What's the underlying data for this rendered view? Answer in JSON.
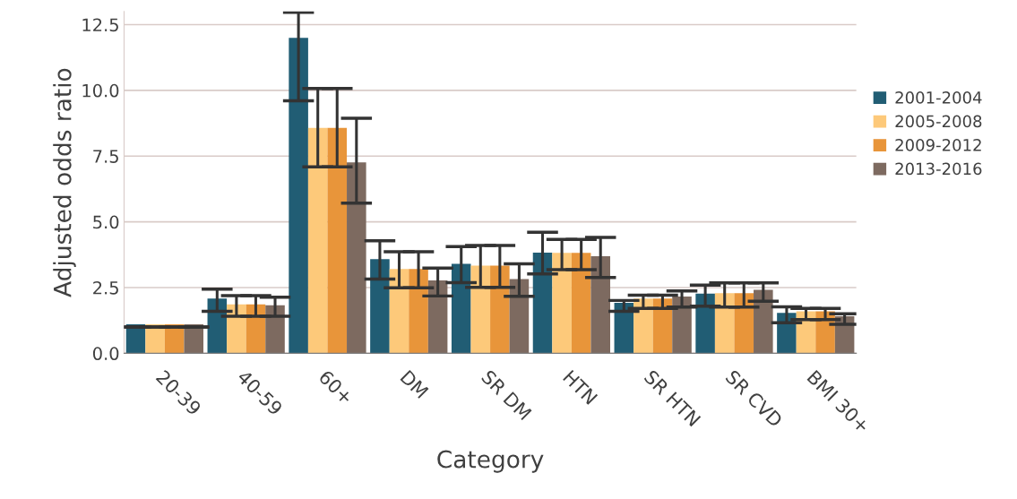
{
  "chart_data": {
    "type": "bar",
    "xlabel": "Category",
    "ylabel": "Adjusted odds ratio",
    "categories": [
      "20-39",
      "40-59",
      "60+",
      "DM",
      "SR DM",
      "HTN",
      "SR HTN",
      "SR CVD",
      "BMI 30+"
    ],
    "series": [
      {
        "name": "2001-2004",
        "color": "#215d74",
        "values": [
          1.1,
          2.08,
          12.0,
          3.58,
          3.4,
          3.83,
          1.92,
          2.27,
          1.54
        ],
        "errors": [
          [
            1.0,
            1.0
          ],
          [
            1.6,
            2.44
          ],
          [
            9.6,
            12.97
          ],
          [
            2.82,
            4.28
          ],
          [
            2.69,
            4.06
          ],
          [
            3.02,
            4.6
          ],
          [
            1.6,
            2.01
          ],
          [
            1.79,
            2.59
          ],
          [
            1.16,
            1.77
          ]
        ]
      },
      {
        "name": "2005-2008",
        "color": "#fdc97a",
        "values": [
          1.1,
          1.86,
          8.57,
          3.21,
          3.33,
          3.82,
          2.08,
          2.29,
          1.6
        ],
        "errors": [
          [
            1.0,
            1.0
          ],
          [
            1.41,
            2.19
          ],
          [
            7.09,
            10.07
          ],
          [
            2.49,
            3.86
          ],
          [
            2.51,
            4.1
          ],
          [
            3.18,
            4.33
          ],
          [
            1.71,
            2.21
          ],
          [
            1.76,
            2.68
          ],
          [
            1.28,
            1.71
          ]
        ]
      },
      {
        "name": "2009-2012",
        "color": "#e8953a",
        "values": [
          1.1,
          1.86,
          8.57,
          3.21,
          3.33,
          3.82,
          2.08,
          2.29,
          1.6
        ],
        "errors": [
          [
            1.0,
            1.0
          ],
          [
            1.41,
            2.19
          ],
          [
            7.09,
            10.07
          ],
          [
            2.49,
            3.86
          ],
          [
            2.51,
            4.1
          ],
          [
            3.18,
            4.33
          ],
          [
            1.71,
            2.21
          ],
          [
            1.76,
            2.68
          ],
          [
            1.28,
            1.71
          ]
        ]
      },
      {
        "name": "2013-2016",
        "color": "#7d6a60",
        "values": [
          1.1,
          1.83,
          7.26,
          2.77,
          2.82,
          3.69,
          2.16,
          2.41,
          1.41
        ],
        "errors": [
          [
            1.0,
            1.0
          ],
          [
            1.41,
            2.13
          ],
          [
            5.71,
            8.94
          ],
          [
            2.18,
            3.24
          ],
          [
            2.17,
            3.4
          ],
          [
            2.88,
            4.41
          ],
          [
            1.76,
            2.37
          ],
          [
            1.98,
            2.68
          ],
          [
            1.1,
            1.5
          ]
        ]
      }
    ],
    "ylim": [
      0,
      13
    ],
    "yticks": [
      {
        "value": 0,
        "label": "0.0"
      },
      {
        "value": 2.5,
        "label": "2.5"
      },
      {
        "value": 5,
        "label": "5.0"
      },
      {
        "value": 7.5,
        "label": "7.5"
      },
      {
        "value": 10,
        "label": "10.0"
      },
      {
        "value": 12.5,
        "label": "12.5"
      }
    ],
    "grid": "y",
    "legend": "right"
  }
}
